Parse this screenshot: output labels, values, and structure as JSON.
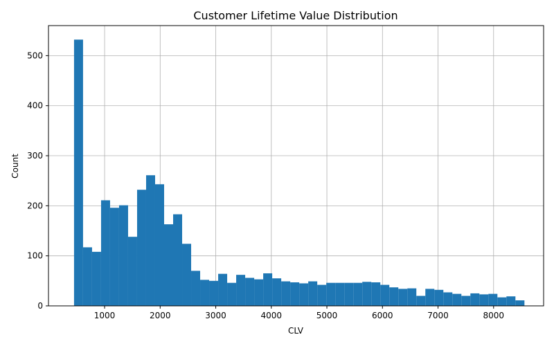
{
  "chart_data": {
    "type": "bar",
    "title": "Customer Lifetime Value Distribution",
    "xlabel": "CLV",
    "ylabel": "Count",
    "xlim": [
      -10,
      8900
    ],
    "ylim": [
      0,
      560
    ],
    "xticks": [
      1000,
      2000,
      3000,
      4000,
      5000,
      6000,
      7000,
      8000
    ],
    "yticks": [
      0,
      100,
      200,
      300,
      400,
      500
    ],
    "grid": true,
    "bin_start": 450,
    "bin_width": 162.1,
    "values": [
      532,
      117,
      108,
      211,
      196,
      201,
      138,
      232,
      261,
      243,
      163,
      183,
      124,
      70,
      52,
      50,
      64,
      46,
      62,
      56,
      53,
      65,
      55,
      49,
      47,
      45,
      49,
      42,
      46,
      46,
      46,
      46,
      48,
      47,
      42,
      37,
      34,
      35,
      20,
      34,
      32,
      27,
      24,
      20,
      25,
      23,
      24,
      17,
      19,
      11
    ],
    "bar_color": "#1f77b4"
  }
}
